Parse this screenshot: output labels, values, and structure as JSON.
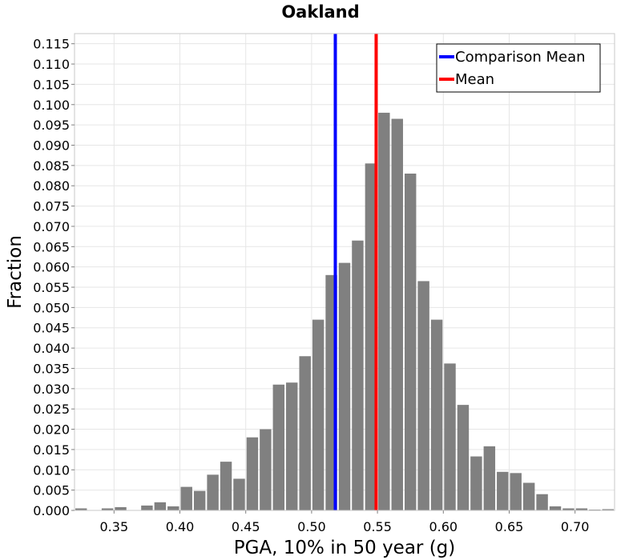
{
  "chart_data": {
    "type": "bar",
    "title": "Oakland",
    "xlabel": "PGA, 10% in 50 year (g)",
    "ylabel": "Fraction",
    "xlim": [
      0.32,
      0.73
    ],
    "ylim": [
      0,
      0.1175
    ],
    "x_ticks": [
      "0.35",
      "0.40",
      "0.45",
      "0.50",
      "0.55",
      "0.60",
      "0.65",
      "0.70"
    ],
    "y_ticks": [
      "0.000",
      "0.005",
      "0.010",
      "0.015",
      "0.020",
      "0.025",
      "0.030",
      "0.035",
      "0.040",
      "0.045",
      "0.050",
      "0.055",
      "0.060",
      "0.065",
      "0.070",
      "0.075",
      "0.080",
      "0.085",
      "0.090",
      "0.095",
      "0.100",
      "0.105",
      "0.110",
      "0.115"
    ],
    "grid": true,
    "bin_width": 0.01,
    "bin_centers": [
      0.325,
      0.335,
      0.345,
      0.355,
      0.365,
      0.375,
      0.385,
      0.395,
      0.405,
      0.415,
      0.425,
      0.435,
      0.445,
      0.455,
      0.465,
      0.475,
      0.485,
      0.495,
      0.505,
      0.515,
      0.525,
      0.535,
      0.545,
      0.555,
      0.565,
      0.575,
      0.585,
      0.595,
      0.605,
      0.615,
      0.625,
      0.635,
      0.645,
      0.655,
      0.665,
      0.675,
      0.685,
      0.695,
      0.705,
      0.715,
      0.725
    ],
    "values": [
      0.0005,
      0.0,
      0.0005,
      0.0008,
      0.0,
      0.0012,
      0.002,
      0.001,
      0.0058,
      0.0048,
      0.0088,
      0.012,
      0.0078,
      0.018,
      0.02,
      0.031,
      0.0315,
      0.038,
      0.047,
      0.058,
      0.061,
      0.0665,
      0.0855,
      0.098,
      0.0965,
      0.083,
      0.0565,
      0.047,
      0.0362,
      0.026,
      0.0133,
      0.0158,
      0.0095,
      0.0092,
      0.0068,
      0.004,
      0.001,
      0.0005,
      0.0005,
      0.0002,
      0.0003
    ],
    "bar_color": "#808080",
    "lines": [
      {
        "name": "Comparison Mean",
        "x": 0.518,
        "color": "#0000ff"
      },
      {
        "name": "Mean",
        "x": 0.549,
        "color": "#ff0000"
      }
    ],
    "legend_position": "top-right"
  }
}
